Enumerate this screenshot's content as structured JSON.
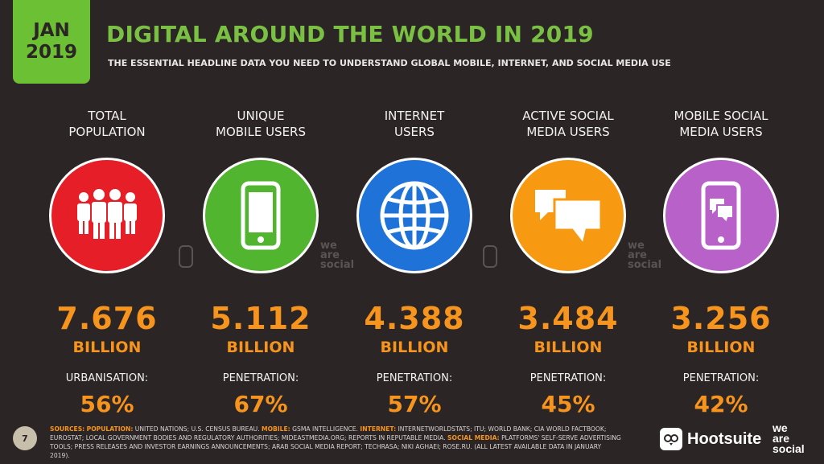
{
  "header": {
    "badge_month": "JAN",
    "badge_year": "2019",
    "title": "DIGITAL AROUND THE WORLD IN 2019",
    "subtitle": "THE ESSENTIAL HEADLINE DATA YOU NEED TO UNDERSTAND GLOBAL MOBILE, INTERNET, AND SOCIAL MEDIA USE"
  },
  "stats": [
    {
      "label": "TOTAL\nPOPULATION",
      "icon": "people-icon",
      "color": "#e61e28",
      "value": "7.676",
      "unit": "BILLION",
      "sub_label": "URBANISATION:",
      "sub_value": "56%"
    },
    {
      "label": "UNIQUE\nMOBILE USERS",
      "icon": "mobile-phone-icon",
      "color": "#52b52f",
      "value": "5.112",
      "unit": "BILLION",
      "sub_label": "PENETRATION:",
      "sub_value": "67%"
    },
    {
      "label": "INTERNET\nUSERS",
      "icon": "globe-icon",
      "color": "#1f73d8",
      "value": "4.388",
      "unit": "BILLION",
      "sub_label": "PENETRATION:",
      "sub_value": "57%"
    },
    {
      "label": "ACTIVE SOCIAL\nMEDIA USERS",
      "icon": "chat-bubbles-icon",
      "color": "#f79a12",
      "value": "3.484",
      "unit": "BILLION",
      "sub_label": "PENETRATION:",
      "sub_value": "45%"
    },
    {
      "label": "MOBILE SOCIAL\nMEDIA USERS",
      "icon": "mobile-chat-icon",
      "color": "#b761c9",
      "value": "3.256",
      "unit": "BILLION",
      "sub_label": "PENETRATION:",
      "sub_value": "42%"
    }
  ],
  "watermark": {
    "line1": "we",
    "line2": "are",
    "line3": "social"
  },
  "footer": {
    "page_number": "7",
    "sources_key": "SOURCES:",
    "population_key": "POPULATION:",
    "population_text": "UNITED NATIONS; U.S. CENSUS BUREAU.",
    "mobile_key": "MOBILE:",
    "mobile_text": "GSMA INTELLIGENCE.",
    "internet_key": "INTERNET:",
    "internet_text": "INTERNETWORLDSTATS; ITU; WORLD BANK; CIA WORLD FACTBOOK; EUROSTAT; LOCAL GOVERNMENT BODIES AND REGULATORY AUTHORITIES; MIDEASTMEDIA.ORG; REPORTS IN REPUTABLE MEDIA.",
    "social_key": "SOCIAL MEDIA:",
    "social_text": "PLATFORMS' SELF-SERVE ADVERTISING TOOLS; PRESS RELEASES AND INVESTOR EARNINGS ANNOUNCEMENTS; ARAB SOCIAL MEDIA REPORT; TECHRASA; NIKI AGHAEI; ROSE.RU. (ALL LATEST AVAILABLE DATA IN JANUARY 2019).",
    "hootsuite": "Hootsuite",
    "wearesocial_1": "we",
    "wearesocial_2": "are",
    "wearesocial_3": "social"
  }
}
